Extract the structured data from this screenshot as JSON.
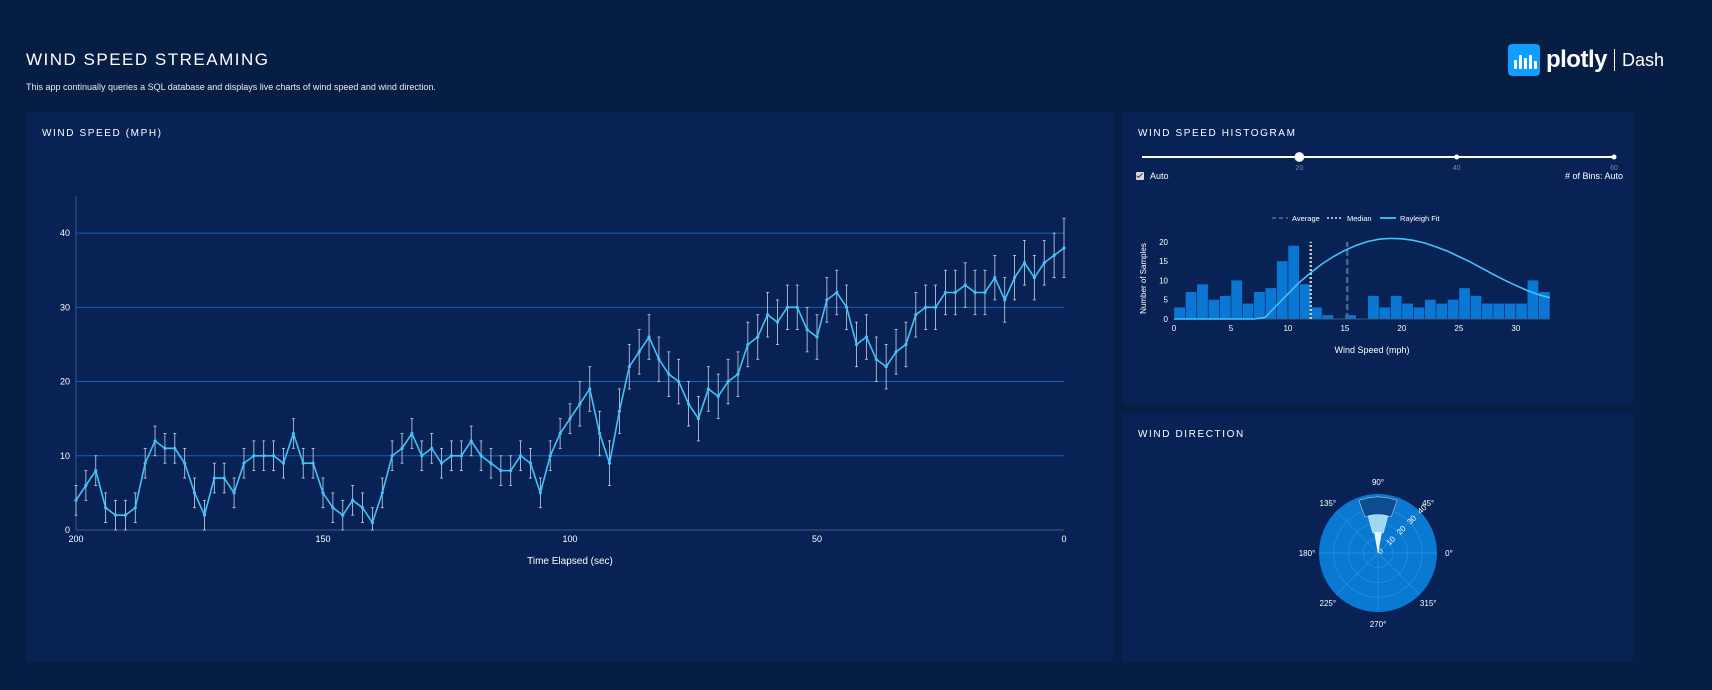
{
  "header": {
    "title": "WIND SPEED STREAMING",
    "description": "This app continually queries a SQL database and displays live charts of wind speed and wind direction.",
    "brand_name": "plotly",
    "brand_sub": "Dash"
  },
  "colors": {
    "background": "#061e44",
    "panel": "#082255",
    "line": "#42c4f7",
    "bar": "#0b77d4",
    "grid": "#1561b3",
    "polar_fill": "#0a79d1"
  },
  "speed_panel": {
    "title": "WIND SPEED (MPH)"
  },
  "hist_panel": {
    "title": "WIND SPEED HISTOGRAM",
    "auto_label": "Auto",
    "bins_label": "# of Bins: Auto",
    "slider": {
      "marks": [
        "20",
        "40",
        "60"
      ],
      "value": 20,
      "min": 0,
      "max": 60
    }
  },
  "dir_panel": {
    "title": "WIND DIRECTION"
  },
  "chart_data": [
    {
      "type": "line",
      "title": "WIND SPEED (MPH)",
      "xlabel": "Time Elapsed (sec)",
      "ylabel": "",
      "xlim": [
        200,
        0
      ],
      "ylim": [
        0,
        45
      ],
      "xticks": [
        "200",
        "150",
        "100",
        "50",
        "0"
      ],
      "yticks": [
        "0",
        "10",
        "20",
        "30",
        "40"
      ],
      "error_bars": true,
      "x": [
        200,
        198,
        196,
        194,
        192,
        190,
        188,
        186,
        184,
        182,
        180,
        178,
        176,
        174,
        172,
        170,
        168,
        166,
        164,
        162,
        160,
        158,
        156,
        154,
        152,
        150,
        148,
        146,
        144,
        142,
        140,
        138,
        136,
        134,
        132,
        130,
        128,
        126,
        124,
        122,
        120,
        118,
        116,
        114,
        112,
        110,
        108,
        106,
        104,
        102,
        100,
        98,
        96,
        94,
        92,
        90,
        88,
        86,
        84,
        82,
        80,
        78,
        76,
        74,
        72,
        70,
        68,
        66,
        64,
        62,
        60,
        58,
        56,
        54,
        52,
        50,
        48,
        46,
        44,
        42,
        40,
        38,
        36,
        34,
        32,
        30,
        28,
        26,
        24,
        22,
        20,
        18,
        16,
        14,
        12,
        10,
        8,
        6,
        4,
        2,
        0
      ],
      "y": [
        4,
        6,
        8,
        3,
        2,
        2,
        3,
        9,
        12,
        11,
        11,
        9,
        5,
        2,
        7,
        7,
        5,
        9,
        10,
        10,
        10,
        9,
        13,
        9,
        9,
        5,
        3,
        2,
        4,
        3,
        1,
        5,
        10,
        11,
        13,
        10,
        11,
        9,
        10,
        10,
        12,
        10,
        9,
        8,
        8,
        10,
        9,
        5,
        10,
        13,
        15,
        17,
        19,
        13,
        9,
        16,
        22,
        24,
        26,
        23,
        21,
        20,
        17,
        15,
        19,
        18,
        20,
        21,
        25,
        26,
        29,
        28,
        30,
        30,
        27,
        26,
        31,
        32,
        30,
        25,
        26,
        23,
        22,
        24,
        25,
        29,
        30,
        30,
        32,
        32,
        33,
        32,
        32,
        34,
        31,
        34,
        36,
        34,
        36,
        37,
        38
      ],
      "err": [
        2,
        2,
        2,
        2,
        2,
        2,
        2,
        2,
        2,
        2,
        2,
        2,
        2,
        2,
        2,
        2,
        2,
        2,
        2,
        2,
        2,
        2,
        2,
        2,
        2,
        2,
        2,
        2,
        2,
        2,
        2,
        2,
        2,
        2,
        2,
        2,
        2,
        2,
        2,
        2,
        2,
        2,
        2,
        2,
        2,
        2,
        2,
        2,
        2,
        2,
        2,
        3,
        3,
        3,
        3,
        3,
        3,
        3,
        3,
        3,
        3,
        3,
        3,
        3,
        3,
        3,
        3,
        3,
        3,
        3,
        3,
        3,
        3,
        3,
        3,
        3,
        3,
        3,
        3,
        3,
        3,
        3,
        3,
        3,
        3,
        3,
        3,
        3,
        3,
        3,
        3,
        3,
        3,
        3,
        3,
        3,
        3,
        3,
        3,
        3,
        4
      ]
    },
    {
      "type": "bar",
      "title": "WIND SPEED HISTOGRAM",
      "xlabel": "Wind Speed (mph)",
      "ylabel": "Number of Samples",
      "xlim": [
        0,
        33
      ],
      "ylim": [
        0,
        21
      ],
      "xticks": [
        "0",
        "5",
        "10",
        "15",
        "20",
        "25",
        "30"
      ],
      "yticks": [
        "0",
        "5",
        "10",
        "15",
        "20"
      ],
      "bin_width": 1,
      "bin_starts": [
        0,
        1,
        2,
        3,
        4,
        5,
        6,
        7,
        8,
        9,
        10,
        11,
        12,
        13,
        14,
        15,
        16,
        17,
        18,
        19,
        20,
        21,
        22,
        23,
        24,
        25,
        26,
        27,
        28,
        29,
        30,
        31,
        32
      ],
      "values": [
        3,
        7,
        9,
        5,
        6,
        10,
        4,
        7,
        8,
        15,
        19,
        9,
        3,
        1,
        0,
        1,
        0,
        6,
        3,
        6,
        4,
        3,
        5,
        4,
        5,
        8,
        6,
        4,
        4,
        4,
        4,
        10,
        7
      ],
      "average": 15.2,
      "median": 12.0,
      "legend": [
        "Average",
        "Median",
        "Rayleigh Fit"
      ],
      "legend_position": "top",
      "rayleigh_fit": {
        "x": [
          0,
          1,
          2,
          3,
          4,
          5,
          6,
          7,
          8,
          9,
          10,
          11,
          12,
          13,
          14,
          15,
          16,
          17,
          18,
          19,
          20,
          21,
          22,
          23,
          24,
          25,
          26,
          27,
          28,
          29,
          30,
          31,
          32,
          33
        ],
        "y": [
          0,
          0,
          0,
          0,
          0,
          0,
          0,
          0,
          0.4,
          3.5,
          6.5,
          9.5,
          12,
          14.3,
          16.2,
          17.8,
          19.1,
          20.1,
          20.7,
          20.9,
          20.8,
          20.4,
          19.7,
          18.7,
          17.6,
          16.2,
          14.8,
          13.2,
          11.6,
          10.1,
          8.7,
          7.4,
          6.3,
          5.5
        ]
      }
    },
    {
      "type": "polar",
      "title": "WIND DIRECTION",
      "angular_ticks": [
        "90°",
        "45°",
        "0°",
        "315°",
        "270°",
        "225°",
        "180°",
        "135°"
      ],
      "radial_ticks": [
        "0",
        "10",
        "20",
        "30",
        "40"
      ],
      "radial_range": [
        0,
        40
      ],
      "wedges": [
        {
          "theta_start": 80,
          "theta_end": 100,
          "r_inner": 0,
          "r_outer": 14,
          "fill": "#dff5ff"
        },
        {
          "theta_start": 75,
          "theta_end": 105,
          "r_inner": 14,
          "r_outer": 26,
          "fill": "#9fd8f2"
        },
        {
          "theta_start": 70,
          "theta_end": 110,
          "r_inner": 26,
          "r_outer": 38,
          "fill": "#0d4d91"
        }
      ]
    }
  ]
}
